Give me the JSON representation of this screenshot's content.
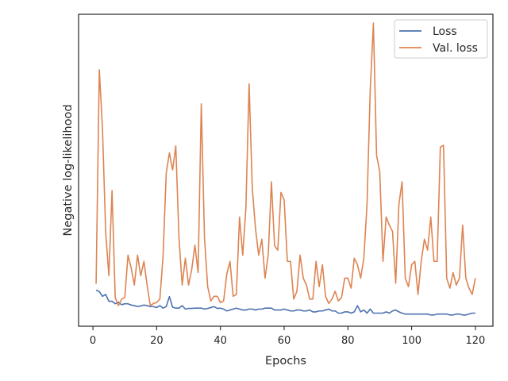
{
  "chart_data": {
    "type": "line",
    "title": "",
    "xlabel": "Epochs",
    "ylabel": "Negative log-likelihood",
    "xlim": [
      -4.5,
      125.5
    ],
    "ylim": [
      0.0,
      1.0
    ],
    "x_ticks": [
      0,
      20,
      40,
      60,
      80,
      100,
      120
    ],
    "y_tick_labels_shown": false,
    "grid": false,
    "legend": "top-right",
    "y_axis_note": "y-axis has no printed scale; values are relative (0 = axis bottom, 1 = axis top)",
    "series": [
      {
        "name": "Loss",
        "color": "#4c72b0",
        "x_start": 1,
        "values": [
          0.116,
          0.111,
          0.096,
          0.102,
          0.08,
          0.08,
          0.072,
          0.077,
          0.069,
          0.072,
          0.072,
          0.068,
          0.066,
          0.063,
          0.065,
          0.068,
          0.066,
          0.063,
          0.063,
          0.06,
          0.066,
          0.058,
          0.063,
          0.095,
          0.061,
          0.058,
          0.058,
          0.066,
          0.055,
          0.057,
          0.057,
          0.058,
          0.058,
          0.058,
          0.055,
          0.057,
          0.06,
          0.063,
          0.057,
          0.058,
          0.055,
          0.049,
          0.052,
          0.055,
          0.058,
          0.055,
          0.052,
          0.052,
          0.055,
          0.055,
          0.052,
          0.055,
          0.055,
          0.058,
          0.058,
          0.058,
          0.052,
          0.052,
          0.052,
          0.055,
          0.052,
          0.049,
          0.049,
          0.052,
          0.052,
          0.049,
          0.049,
          0.052,
          0.046,
          0.046,
          0.049,
          0.049,
          0.052,
          0.055,
          0.049,
          0.049,
          0.042,
          0.042,
          0.046,
          0.046,
          0.042,
          0.046,
          0.066,
          0.046,
          0.052,
          0.042,
          0.055,
          0.042,
          0.042,
          0.042,
          0.042,
          0.046,
          0.042,
          0.049,
          0.052,
          0.046,
          0.042,
          0.039,
          0.039,
          0.039,
          0.039,
          0.039,
          0.039,
          0.039,
          0.039,
          0.036,
          0.036,
          0.039,
          0.039,
          0.039,
          0.039,
          0.036,
          0.036,
          0.039,
          0.039,
          0.036,
          0.036,
          0.039,
          0.042,
          0.042
        ]
      },
      {
        "name": "Val. loss",
        "color": "#dd8452",
        "x_start": 1,
        "values": [
          0.136,
          0.822,
          0.633,
          0.302,
          0.162,
          0.435,
          0.092,
          0.066,
          0.087,
          0.092,
          0.228,
          0.187,
          0.132,
          0.228,
          0.162,
          0.208,
          0.132,
          0.066,
          0.073,
          0.076,
          0.087,
          0.223,
          0.491,
          0.556,
          0.501,
          0.578,
          0.284,
          0.132,
          0.218,
          0.132,
          0.182,
          0.26,
          0.172,
          0.713,
          0.284,
          0.127,
          0.081,
          0.096,
          0.096,
          0.076,
          0.081,
          0.167,
          0.208,
          0.096,
          0.102,
          0.35,
          0.228,
          0.38,
          0.777,
          0.442,
          0.314,
          0.228,
          0.279,
          0.154,
          0.228,
          0.463,
          0.258,
          0.244,
          0.429,
          0.405,
          0.208,
          0.208,
          0.087,
          0.112,
          0.228,
          0.154,
          0.132,
          0.087,
          0.087,
          0.208,
          0.127,
          0.197,
          0.096,
          0.073,
          0.087,
          0.112,
          0.081,
          0.092,
          0.154,
          0.154,
          0.122,
          0.218,
          0.197,
          0.154,
          0.218,
          0.391,
          0.756,
          0.972,
          0.547,
          0.496,
          0.208,
          0.35,
          0.324,
          0.304,
          0.138,
          0.391,
          0.463,
          0.154,
          0.127,
          0.197,
          0.208,
          0.102,
          0.208,
          0.279,
          0.244,
          0.35,
          0.208,
          0.208,
          0.574,
          0.58,
          0.154,
          0.122,
          0.172,
          0.132,
          0.154,
          0.324,
          0.154,
          0.122,
          0.102,
          0.154
        ]
      }
    ]
  }
}
